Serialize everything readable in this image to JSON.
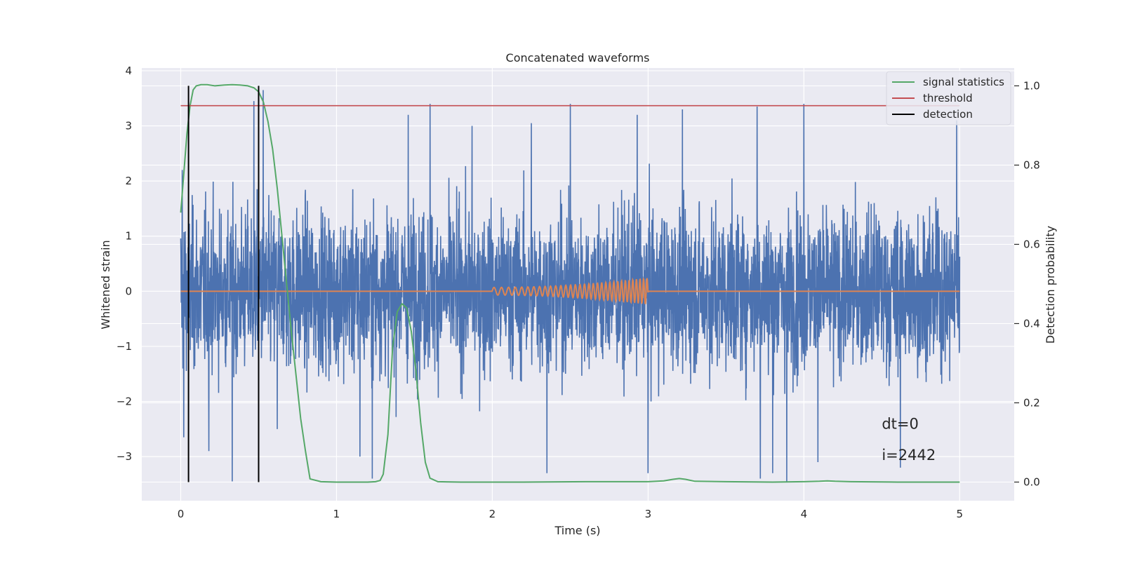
{
  "chart_data": {
    "type": "line",
    "title": "Concatenated waveforms",
    "xlabel": "Time (s)",
    "ylabel": "Whitened strain",
    "y2label": "Detection probability",
    "xlim": [
      -0.25,
      5.35
    ],
    "ylim": [
      -3.8,
      4.05
    ],
    "y2lim": [
      -0.047,
      1.045
    ],
    "x_ticks": [
      0,
      1,
      2,
      3,
      4,
      5
    ],
    "x_tick_labels": [
      "0",
      "1",
      "2",
      "3",
      "4",
      "5"
    ],
    "y_ticks": [
      -3,
      -2,
      -1,
      0,
      1,
      2,
      3,
      4
    ],
    "y_tick_labels": [
      "−3",
      "−2",
      "−1",
      "0",
      "1",
      "2",
      "3",
      "4"
    ],
    "y2_ticks": [
      0.0,
      0.2,
      0.4,
      0.6,
      0.8,
      1.0
    ],
    "y2_tick_labels": [
      "0.0",
      "0.2",
      "0.4",
      "0.6",
      "0.8",
      "1.0"
    ],
    "grid": true,
    "legend_position": "top-right",
    "colors": {
      "strain": "#4c72b0",
      "injection": "#dd8452",
      "signal_statistics": "#55a868",
      "threshold": "#c44e52",
      "detection": "#000000",
      "plot_background": "#eaeaf2",
      "grid": "#ffffff"
    },
    "series": [
      {
        "key": "strain",
        "axis": "left",
        "style": "noise",
        "x_range": [
          0,
          5
        ],
        "peaks": [
          {
            "x": 0.01,
            "y": 2.2
          },
          {
            "x": 0.02,
            "y": -2.65
          },
          {
            "x": 0.18,
            "y": 2.8
          },
          {
            "x": 0.18,
            "y": -2.9
          },
          {
            "x": 0.33,
            "y": -3.45
          },
          {
            "x": 0.47,
            "y": 3.45
          },
          {
            "x": 0.53,
            "y": 3.65
          },
          {
            "x": 0.62,
            "y": -2.5
          },
          {
            "x": 1.15,
            "y": -3.0
          },
          {
            "x": 1.23,
            "y": -3.4
          },
          {
            "x": 1.46,
            "y": 3.2
          },
          {
            "x": 1.6,
            "y": 3.4
          },
          {
            "x": 1.87,
            "y": 3.0
          },
          {
            "x": 2.25,
            "y": 3.05
          },
          {
            "x": 2.35,
            "y": -3.3
          },
          {
            "x": 2.5,
            "y": 3.4
          },
          {
            "x": 2.93,
            "y": 3.2
          },
          {
            "x": 3.0,
            "y": -3.3
          },
          {
            "x": 3.22,
            "y": 3.3
          },
          {
            "x": 3.7,
            "y": 3.35
          },
          {
            "x": 3.72,
            "y": -3.4
          },
          {
            "x": 3.8,
            "y": -3.3
          },
          {
            "x": 3.89,
            "y": -3.45
          },
          {
            "x": 4.0,
            "y": 3.4
          },
          {
            "x": 4.09,
            "y": -3.1
          },
          {
            "x": 4.62,
            "y": -3.2
          },
          {
            "x": 4.98,
            "y": 3.1
          }
        ]
      },
      {
        "key": "injection",
        "axis": "left",
        "style": "chirp",
        "x_range": [
          0,
          5
        ],
        "chirp_start": 2.0,
        "chirp_end": 3.0,
        "amplitude_start": 0.07,
        "amplitude_end": 0.24,
        "freq_start": 20,
        "freq_end": 45
      },
      {
        "key": "signal_statistics",
        "name": "signal statistics",
        "axis": "right",
        "x": [
          0.0,
          0.02,
          0.04,
          0.06,
          0.08,
          0.1,
          0.13,
          0.17,
          0.22,
          0.28,
          0.33,
          0.38,
          0.43,
          0.47,
          0.5,
          0.53,
          0.56,
          0.59,
          0.62,
          0.65,
          0.68,
          0.71,
          0.74,
          0.77,
          0.8,
          0.83,
          0.9,
          1.0,
          1.1,
          1.2,
          1.25,
          1.28,
          1.3,
          1.33,
          1.36,
          1.39,
          1.42,
          1.45,
          1.48,
          1.51,
          1.54,
          1.57,
          1.6,
          1.65,
          1.8,
          2.2,
          2.6,
          3.0,
          3.1,
          3.16,
          3.2,
          3.24,
          3.3,
          3.5,
          3.8,
          4.0,
          4.1,
          4.15,
          4.2,
          4.3,
          4.6,
          5.0
        ],
        "y": [
          0.68,
          0.78,
          0.88,
          0.95,
          0.99,
          1.0,
          1.003,
          1.003,
          1.0,
          1.002,
          1.003,
          1.002,
          1.0,
          0.995,
          0.985,
          0.96,
          0.91,
          0.84,
          0.74,
          0.62,
          0.5,
          0.38,
          0.27,
          0.16,
          0.08,
          0.008,
          0.001,
          0.0,
          0.0,
          0.0,
          0.001,
          0.004,
          0.02,
          0.12,
          0.34,
          0.43,
          0.45,
          0.44,
          0.38,
          0.28,
          0.15,
          0.05,
          0.01,
          0.001,
          0.0,
          0.0,
          0.001,
          0.001,
          0.003,
          0.007,
          0.009,
          0.007,
          0.002,
          0.001,
          0.0,
          0.001,
          0.002,
          0.003,
          0.002,
          0.001,
          0.0,
          0.0
        ]
      },
      {
        "key": "threshold",
        "name": "threshold",
        "axis": "right",
        "x": [
          0,
          5
        ],
        "y": [
          0.95,
          0.95
        ]
      },
      {
        "key": "detection",
        "name": "detection",
        "axis": "right",
        "type": "vlines",
        "x": [
          0.05,
          0.5
        ],
        "y_range": [
          0.0,
          1.0
        ]
      }
    ],
    "annotations": {
      "dt": "dt=0",
      "i": "i=2442",
      "x": 4.5,
      "y_dt": -2.6,
      "y_i": -3.0
    }
  }
}
